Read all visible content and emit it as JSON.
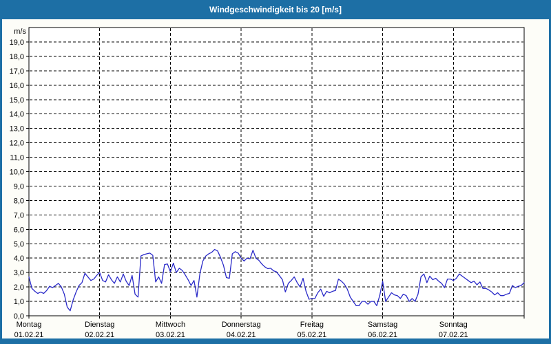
{
  "window": {
    "titlebar_color": "#1d6fa5",
    "border_color": "#1d6fa5",
    "background_color": "#fdfdf8"
  },
  "chart_data": {
    "type": "line",
    "title": "Windgeschwindigkeit bis 20 [m/s]",
    "unit_label": "m/s",
    "ylim": [
      0,
      20
    ],
    "y_tick_step": 1.0,
    "y_tick_labels": [
      "0,0",
      "1,0",
      "2,0",
      "3,0",
      "4,0",
      "5,0",
      "6,0",
      "7,0",
      "8,0",
      "9,0",
      "10,0",
      "11,0",
      "12,0",
      "13,0",
      "14,0",
      "15,0",
      "16,0",
      "17,0",
      "18,0",
      "19,0"
    ],
    "grid": "dashed",
    "legend": "none",
    "x_days": [
      {
        "name": "Montag",
        "date": "01.02.21"
      },
      {
        "name": "Dienstag",
        "date": "02.02.21"
      },
      {
        "name": "Mittwoch",
        "date": "03.02.21"
      },
      {
        "name": "Donnerstag",
        "date": "04.02.21"
      },
      {
        "name": "Freitag",
        "date": "05.02.21"
      },
      {
        "name": "Samstag",
        "date": "06.02.21"
      },
      {
        "name": "Sonntag",
        "date": "07.02.21"
      }
    ],
    "hours_per_day": 24,
    "series": [
      {
        "name": "Windgeschwindigkeit",
        "unit": "m/s",
        "hourly_values": [
          2.7,
          1.9,
          1.7,
          1.55,
          1.65,
          1.55,
          1.75,
          2.05,
          1.95,
          2.1,
          2.25,
          2.0,
          1.5,
          0.6,
          0.35,
          1.1,
          1.65,
          2.1,
          2.3,
          2.95,
          2.7,
          2.45,
          2.55,
          2.8,
          3.0,
          2.45,
          2.35,
          2.85,
          2.5,
          2.25,
          2.7,
          2.35,
          2.9,
          2.4,
          2.1,
          2.8,
          1.5,
          1.3,
          4.15,
          4.25,
          4.3,
          4.35,
          4.2,
          2.35,
          2.7,
          2.25,
          3.55,
          3.6,
          3.05,
          3.65,
          3.0,
          3.3,
          3.15,
          2.85,
          2.5,
          2.1,
          2.45,
          1.3,
          2.9,
          3.8,
          4.15,
          4.3,
          4.4,
          4.6,
          4.5,
          4.05,
          3.5,
          2.65,
          2.6,
          4.3,
          4.45,
          4.35,
          4.0,
          3.8,
          4.0,
          3.95,
          4.55,
          4.0,
          3.85,
          3.6,
          3.4,
          3.27,
          3.3,
          3.12,
          3.05,
          2.78,
          2.5,
          1.65,
          2.25,
          2.45,
          2.7,
          2.3,
          2.0,
          2.6,
          1.7,
          1.15,
          1.2,
          1.2,
          1.6,
          1.85,
          1.35,
          1.7,
          1.6,
          1.7,
          1.75,
          2.55,
          2.4,
          2.2,
          1.85,
          1.3,
          1.0,
          0.7,
          0.7,
          1.0,
          1.0,
          0.8,
          1.0,
          1.0,
          0.7,
          1.4,
          2.4,
          1.0,
          1.3,
          1.6,
          1.45,
          1.4,
          1.2,
          1.5,
          1.4,
          1.0,
          1.2,
          1.0,
          1.5,
          2.7,
          2.9,
          2.3,
          2.75,
          2.5,
          2.6,
          2.4,
          2.25,
          1.95,
          2.55,
          2.55,
          2.45,
          2.6,
          2.9,
          2.75,
          2.6,
          2.45,
          2.3,
          2.4,
          2.15,
          2.35,
          1.9,
          1.9,
          1.8,
          1.65,
          1.45,
          1.6,
          1.4,
          1.4,
          1.5,
          1.55,
          2.1,
          1.95,
          2.05,
          2.1,
          2.3
        ]
      }
    ],
    "colors": {
      "line": "#2a2ac8",
      "grid": "#000000",
      "frame": "#000000",
      "plot_background": "#ffffff",
      "text": "#000000",
      "title_text": "#ffffff"
    }
  }
}
